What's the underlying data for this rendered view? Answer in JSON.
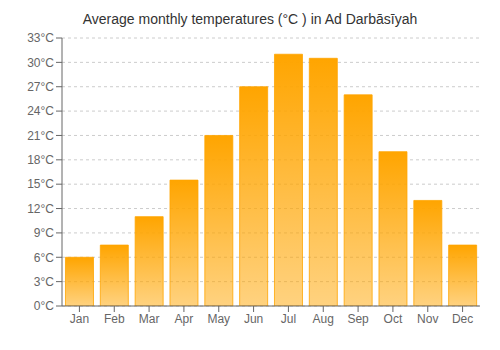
{
  "chart_data": {
    "type": "bar",
    "title": "Average monthly temperatures (°C ) in Ad Darbāsīyah",
    "categories": [
      "Jan",
      "Feb",
      "Mar",
      "Apr",
      "May",
      "Jun",
      "Jul",
      "Aug",
      "Sep",
      "Oct",
      "Nov",
      "Dec"
    ],
    "values": [
      6.0,
      7.5,
      11.0,
      15.5,
      21.0,
      27.0,
      31.0,
      30.5,
      26.0,
      19.0,
      13.0,
      7.5
    ],
    "color": "#FFA500",
    "ylim": [
      0,
      33
    ],
    "yticks": [
      {
        "value": 0,
        "label": "0°C"
      },
      {
        "value": 3,
        "label": "3°C"
      },
      {
        "value": 6,
        "label": "6°C"
      },
      {
        "value": 9,
        "label": "9°C"
      },
      {
        "value": 12,
        "label": "12°C"
      },
      {
        "value": 15,
        "label": "15°C"
      },
      {
        "value": 18,
        "label": "18°C"
      },
      {
        "value": 21,
        "label": "21°C"
      },
      {
        "value": 24,
        "label": "24°C"
      },
      {
        "value": 27,
        "label": "27°C"
      },
      {
        "value": 30,
        "label": "30°C"
      },
      {
        "value": 33,
        "label": "33°C"
      }
    ],
    "grid": true
  }
}
